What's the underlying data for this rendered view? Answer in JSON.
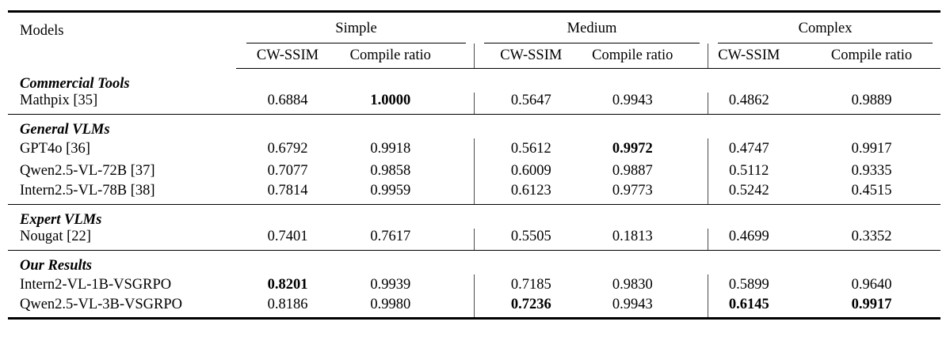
{
  "table": {
    "models_header": "Models",
    "groups": [
      {
        "label": "Simple",
        "metrics": [
          "CW-SSIM",
          "Compile ratio"
        ]
      },
      {
        "label": "Medium",
        "metrics": [
          "CW-SSIM",
          "Compile ratio"
        ]
      },
      {
        "label": "Complex",
        "metrics": [
          "CW-SSIM",
          "Compile ratio"
        ]
      }
    ],
    "sections": [
      {
        "title": "Commercial Tools",
        "rows": [
          {
            "model": "Mathpix [35]",
            "values": [
              "0.6884",
              "1.0000",
              "0.5647",
              "0.9943",
              "0.4862",
              "0.9889"
            ],
            "bold": [
              false,
              true,
              false,
              false,
              false,
              false
            ]
          }
        ]
      },
      {
        "title": "General VLMs",
        "rows": [
          {
            "model": "GPT4o [36]",
            "values": [
              "0.6792",
              "0.9918",
              "0.5612",
              "0.9972",
              "0.4747",
              "0.9917"
            ],
            "bold": [
              false,
              false,
              false,
              true,
              false,
              false
            ]
          },
          {
            "model": "Qwen2.5-VL-72B [37]",
            "values": [
              "0.7077",
              "0.9858",
              "0.6009",
              "0.9887",
              "0.5112",
              "0.9335"
            ],
            "bold": [
              false,
              false,
              false,
              false,
              false,
              false
            ]
          },
          {
            "model": "Intern2.5-VL-78B [38]",
            "values": [
              "0.7814",
              "0.9959",
              "0.6123",
              "0.9773",
              "0.5242",
              "0.4515"
            ],
            "bold": [
              false,
              false,
              false,
              false,
              false,
              false
            ]
          }
        ]
      },
      {
        "title": "Expert VLMs",
        "rows": [
          {
            "model": "Nougat [22]",
            "values": [
              "0.7401",
              "0.7617",
              "0.5505",
              "0.1813",
              "0.4699",
              "0.3352"
            ],
            "bold": [
              false,
              false,
              false,
              false,
              false,
              false
            ]
          }
        ]
      },
      {
        "title": "Our Results",
        "rows": [
          {
            "model": "Intern2-VL-1B-VSGRPO",
            "values": [
              "0.8201",
              "0.9939",
              "0.7185",
              "0.9830",
              "0.5899",
              "0.9640"
            ],
            "bold": [
              true,
              false,
              false,
              false,
              false,
              false
            ]
          },
          {
            "model": "Qwen2.5-VL-3B-VSGRPO",
            "values": [
              "0.8186",
              "0.9980",
              "0.7236",
              "0.9943",
              "0.6145",
              "0.9917"
            ],
            "bold": [
              false,
              false,
              true,
              false,
              true,
              true
            ]
          }
        ]
      }
    ]
  },
  "colors": {
    "background": "#ffffff",
    "text": "#000000",
    "rule": "#000000",
    "group_divider": "#4a4a4a"
  }
}
